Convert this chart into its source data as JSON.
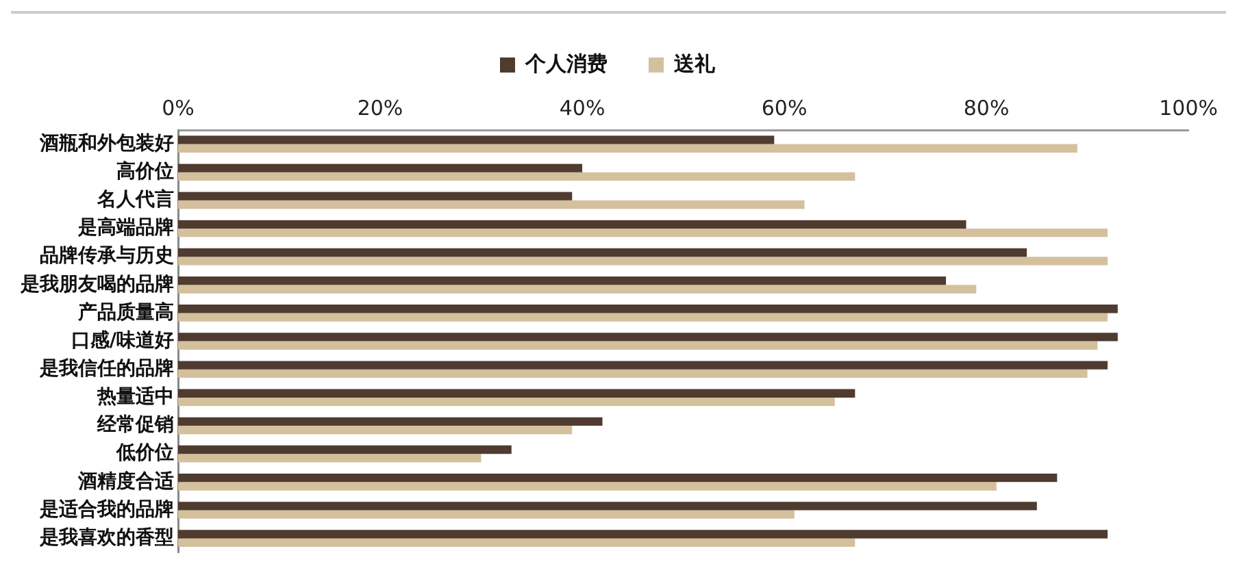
{
  "chart_data": {
    "type": "bar",
    "orientation": "horizontal",
    "categories": [
      "酒瓶和外包装好",
      "高价位",
      "名人代言",
      "是高端品牌",
      "品牌传承与历史",
      "是我朋友喝的品牌",
      "产品质量高",
      "口感/味道好",
      "是我信任的品牌",
      "热量适中",
      "经常促销",
      "低价位",
      "酒精度合适",
      "是适合我的品牌",
      "是我喜欢的香型"
    ],
    "series": [
      {
        "name": "个人消费",
        "color": "#4f3b2f",
        "values": [
          59,
          40,
          39,
          78,
          84,
          76,
          93,
          93,
          92,
          67,
          42,
          33,
          87,
          85,
          92
        ]
      },
      {
        "name": "送礼",
        "color": "#d4c09c",
        "values": [
          89,
          67,
          62,
          92,
          92,
          79,
          92,
          91,
          90,
          65,
          39,
          30,
          81,
          61,
          67
        ]
      }
    ],
    "xlim": [
      0,
      100
    ],
    "xticks": [
      {
        "value": 0,
        "label": "0%"
      },
      {
        "value": 20,
        "label": "20%"
      },
      {
        "value": 40,
        "label": "40%"
      },
      {
        "value": 60,
        "label": "60%"
      },
      {
        "value": 80,
        "label": "80%"
      },
      {
        "value": 100,
        "label": "100%"
      }
    ],
    "grid": false,
    "legend": "top"
  }
}
